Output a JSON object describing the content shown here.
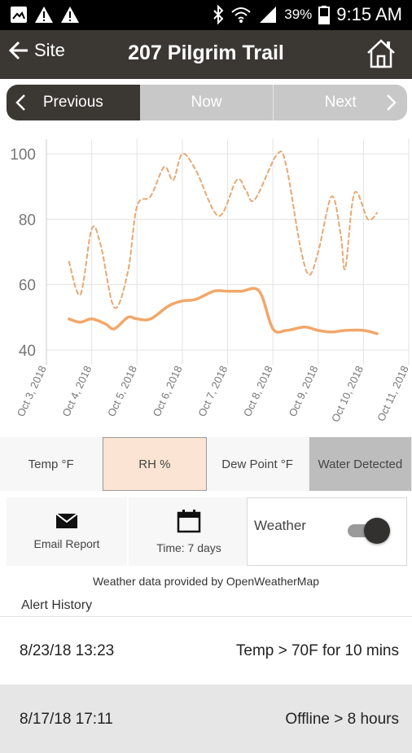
{
  "status_bar": {
    "battery_percent": "39%",
    "time": "9:15 AM"
  },
  "app_bar": {
    "back_label": "Site",
    "title": "207 Pilgrim Trail"
  },
  "period_nav": {
    "previous_label": "Previous",
    "now_label": "Now",
    "next_label": "Next"
  },
  "chart_data": {
    "type": "line",
    "x_tick_labels": [
      "Oct 3, 2018",
      "Oct 4, 2018",
      "Oct 5, 2018",
      "Oct 6, 2018",
      "Oct 7, 2018",
      "Oct 8, 2018",
      "Oct 9, 2018",
      "Oct 10, 2018",
      "Oct 11, 2018"
    ],
    "y_ticks": [
      40,
      60,
      80,
      100
    ],
    "ylim": [
      37,
      102
    ],
    "xlim": [
      0,
      8
    ],
    "grid": true,
    "series": [
      {
        "style": "dashed",
        "color": "#e8a872",
        "points": [
          [
            0.5,
            67
          ],
          [
            0.75,
            57
          ],
          [
            1.0,
            77
          ],
          [
            1.2,
            72
          ],
          [
            1.5,
            53
          ],
          [
            1.8,
            64
          ],
          [
            2.0,
            84
          ],
          [
            2.3,
            87
          ],
          [
            2.6,
            96
          ],
          [
            2.8,
            92
          ],
          [
            3.0,
            100
          ],
          [
            3.3,
            95
          ],
          [
            3.8,
            81
          ],
          [
            4.2,
            92
          ],
          [
            4.4,
            89
          ],
          [
            4.6,
            86
          ],
          [
            5.1,
            100
          ],
          [
            5.3,
            96
          ],
          [
            5.6,
            72
          ],
          [
            5.8,
            63
          ],
          [
            6.0,
            70
          ],
          [
            6.3,
            87
          ],
          [
            6.5,
            75
          ],
          [
            6.6,
            65
          ],
          [
            6.8,
            88
          ],
          [
            7.1,
            80
          ],
          [
            7.3,
            82
          ]
        ]
      },
      {
        "style": "solid",
        "color": "#f2a768",
        "points": [
          [
            0.5,
            49.5
          ],
          [
            0.75,
            48.5
          ],
          [
            1.0,
            49.5
          ],
          [
            1.3,
            48
          ],
          [
            1.5,
            46.5
          ],
          [
            1.8,
            50
          ],
          [
            2.0,
            49.5
          ],
          [
            2.3,
            49.5
          ],
          [
            2.7,
            53.5
          ],
          [
            3.0,
            55
          ],
          [
            3.3,
            55.5
          ],
          [
            3.7,
            58
          ],
          [
            4.0,
            58
          ],
          [
            4.3,
            58
          ],
          [
            4.7,
            58
          ],
          [
            5.0,
            46.5
          ],
          [
            5.3,
            46
          ],
          [
            5.7,
            47
          ],
          [
            6.0,
            46
          ],
          [
            6.3,
            45.5
          ],
          [
            6.6,
            46
          ],
          [
            7.0,
            46
          ],
          [
            7.3,
            45
          ]
        ]
      }
    ]
  },
  "metric_tabs": {
    "temp": "Temp °F",
    "rh": "RH %",
    "dew_point": "Dew Point °F",
    "water": "Water Detected"
  },
  "actions": {
    "email_report": "Email Report",
    "time_range": "Time: 7 days",
    "weather_label": "Weather",
    "weather_on": true
  },
  "provider_note": "Weather data provided by OpenWeatherMap",
  "alert_history": {
    "title": "Alert History",
    "rows": [
      {
        "date": "8/23/18 13:23",
        "message": "Temp > 70F for 10 mins"
      },
      {
        "date": "8/17/18 17:11",
        "message": "Offline > 8 hours"
      }
    ]
  }
}
